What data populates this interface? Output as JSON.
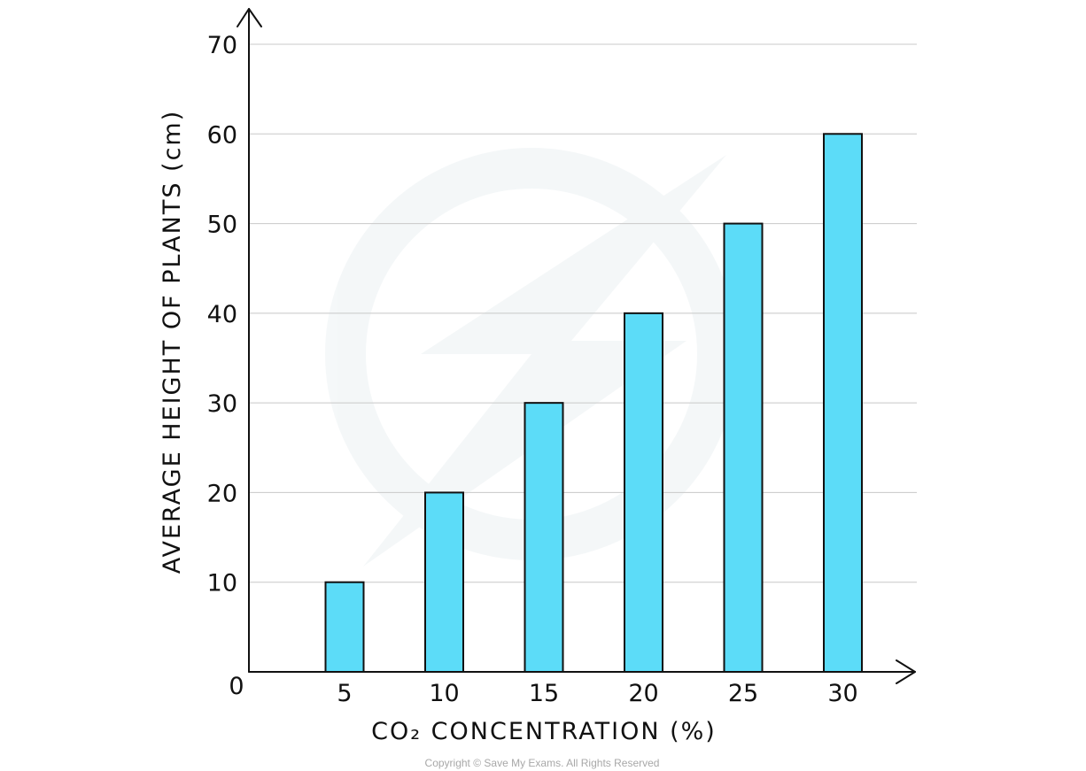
{
  "chart_data": {
    "type": "bar",
    "categories": [
      "5",
      "10",
      "15",
      "20",
      "25",
      "30"
    ],
    "values": [
      10,
      20,
      30,
      40,
      50,
      60
    ],
    "xlabel": "CO₂ CONCENTRATION (%)",
    "ylabel": "AVERAGE HEIGHT OF PLANTS (cm)",
    "ylim": [
      0,
      70
    ],
    "yticks": [
      10,
      20,
      30,
      40,
      50,
      60,
      70
    ],
    "origin_label": "0",
    "grid": true,
    "bar_color": "#5cdcf8",
    "bar_edge_color": "#111111",
    "grid_color": "#c8c8c8"
  },
  "footer": {
    "copyright": "Copyright © Save My Exams. All Rights Reserved"
  }
}
